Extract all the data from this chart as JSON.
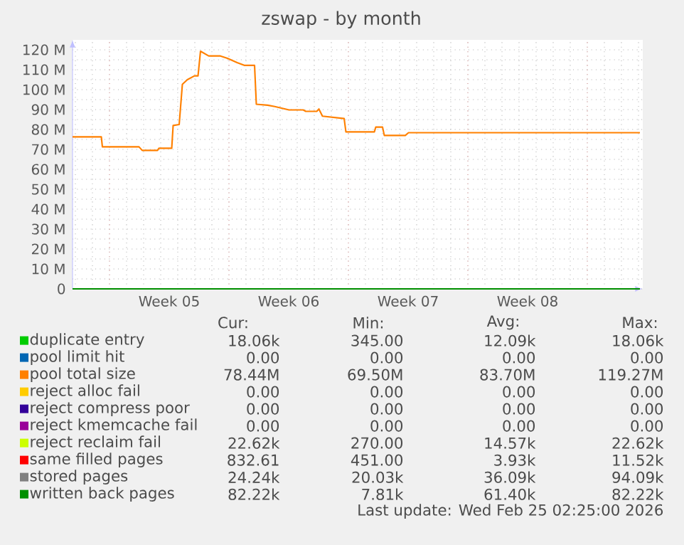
{
  "chart_data": {
    "type": "line",
    "title": "zswap - by month",
    "xlim": [
      "2026-01-23T20:00",
      "2026-02-26T06:00"
    ],
    "xticks": [
      {
        "value": "2026-01-29T12:00",
        "label": "Week 05"
      },
      {
        "value": "2026-02-05T12:00",
        "label": "Week 06"
      },
      {
        "value": "2026-02-12T12:00",
        "label": "Week 07"
      },
      {
        "value": "2026-02-19T12:00",
        "label": "Week 08"
      }
    ],
    "ylim": [
      0,
      125
    ],
    "yticks": [
      {
        "value": 0,
        "label": "0"
      },
      {
        "value": 10,
        "label": "10 M"
      },
      {
        "value": 20,
        "label": "20 M"
      },
      {
        "value": 30,
        "label": "30 M"
      },
      {
        "value": 40,
        "label": "40 M"
      },
      {
        "value": 50,
        "label": "50 M"
      },
      {
        "value": 60,
        "label": "60 M"
      },
      {
        "value": 70,
        "label": "70 M"
      },
      {
        "value": 80,
        "label": "80 M"
      },
      {
        "value": 90,
        "label": "90 M"
      },
      {
        "value": 100,
        "label": "100 M"
      },
      {
        "value": 110,
        "label": "110 M"
      },
      {
        "value": 120,
        "label": "120 M"
      }
    ],
    "grid": true,
    "legend": "bottom",
    "marker": "none",
    "line_style": "solid",
    "series": [
      {
        "name": "duplicate entry",
        "color": "#00cc00"
      },
      {
        "name": "pool limit hit",
        "color": "#0066b3"
      },
      {
        "name": "pool total size",
        "color": "#ff8000",
        "x": [
          "2026-01-23T20:00",
          "2026-01-25T12:30",
          "2026-01-25T14:00",
          "2026-01-27T17:30",
          "2026-01-27T22:00",
          "2026-01-28T19:30",
          "2026-01-28T21:30",
          "2026-01-29T15:30",
          "2026-01-29T17:30",
          "2026-01-30T02:00",
          "2026-01-30T06:30",
          "2026-01-30T13:30",
          "2026-01-30T23:30",
          "2026-01-31T04:30",
          "2026-01-31T08:00",
          "2026-01-31T19:30",
          "2026-02-01T12:00",
          "2026-02-01T22:00",
          "2026-02-02T11:30",
          "2026-02-02T21:30",
          "2026-02-03T12:00",
          "2026-02-03T14:30",
          "2026-02-04T06:30",
          "2026-02-04T16:30",
          "2026-02-05T12:30",
          "2026-02-06T08:30",
          "2026-02-06T12:00",
          "2026-02-07T03:30",
          "2026-02-07T06:30",
          "2026-02-07T11:30",
          "2026-02-08T18:00",
          "2026-02-08T20:30",
          "2026-02-10T12:30",
          "2026-02-10T14:30",
          "2026-02-11T00:00",
          "2026-02-11T02:30",
          "2026-02-12T08:00",
          "2026-02-12T12:30",
          "2026-02-26T02:00"
        ],
        "values": [
          76.3,
          76.3,
          71.3,
          71.3,
          69.5,
          69.5,
          70.6,
          70.6,
          82.0,
          82.5,
          102.7,
          105.0,
          106.9,
          106.9,
          119.3,
          116.9,
          116.9,
          115.7,
          113.6,
          112.2,
          112.2,
          92.7,
          92.2,
          91.5,
          89.8,
          89.8,
          89.1,
          89.1,
          90.3,
          86.7,
          85.5,
          78.8,
          78.8,
          81.2,
          81.2,
          77.0,
          77.0,
          78.4,
          78.4
        ]
      },
      {
        "name": "reject alloc fail",
        "color": "#ffcc00"
      },
      {
        "name": "reject compress poor",
        "color": "#330099"
      },
      {
        "name": "reject kmemcache fail",
        "color": "#990099"
      },
      {
        "name": "reject reclaim fail",
        "color": "#ccff00"
      },
      {
        "name": "same filled pages",
        "color": "#ff0000"
      },
      {
        "name": "stored pages",
        "color": "#808080"
      },
      {
        "name": "written back pages",
        "color": "#008f00",
        "x": [
          "2026-01-23T20:00",
          "2026-02-26T02:00"
        ],
        "values": [
          0,
          0
        ]
      }
    ],
    "ref_lines": [
      {
        "axis": "x",
        "value": "2026-01-26T00:00",
        "color": "#e8a0a0",
        "line_style": "dotted"
      },
      {
        "axis": "x",
        "value": "2026-02-02T00:00",
        "color": "#e8a0a0",
        "line_style": "dotted"
      },
      {
        "axis": "x",
        "value": "2026-02-09T00:00",
        "color": "#e8a0a0",
        "line_style": "dotted"
      },
      {
        "axis": "x",
        "value": "2026-02-16T00:00",
        "color": "#e8a0a0",
        "line_style": "dotted"
      },
      {
        "axis": "x",
        "value": "2026-02-23T00:00",
        "color": "#e8a0a0",
        "line_style": "dotted"
      }
    ],
    "annotations": [
      "Cur:",
      "Min:",
      "Avg:",
      "Max:",
      "18.06k",
      "345.00",
      "12.09k",
      "18.06k",
      "0.00",
      "0.00",
      "0.00",
      "0.00",
      "78.44M",
      "69.50M",
      "83.70M",
      "119.27M",
      "0.00",
      "0.00",
      "0.00",
      "0.00",
      "0.00",
      "0.00",
      "0.00",
      "0.00",
      "0.00",
      "0.00",
      "0.00",
      "0.00",
      "22.62k",
      "270.00",
      "14.57k",
      "22.62k",
      "832.61",
      "451.00",
      "3.93k",
      "11.52k",
      "24.24k",
      "20.03k",
      "36.09k",
      "94.09k",
      "82.22k",
      "7.81k",
      "61.40k",
      "82.22k",
      "Last update: Wed Feb 25 02:25:00 2026"
    ]
  }
}
